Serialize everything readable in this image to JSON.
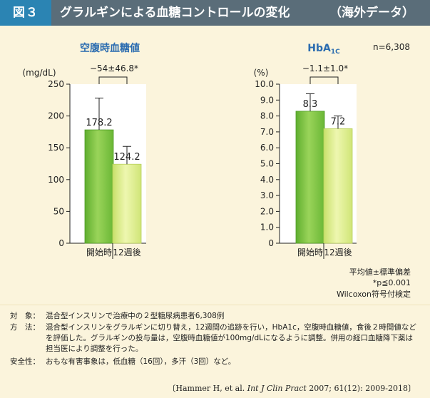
{
  "header": {
    "figure_label": "図３",
    "title": "グラルギンによる血糖コントロールの変化",
    "note": "（海外データ）"
  },
  "colors": {
    "header_bg": "#5a6d79",
    "label_bg": "#2b84b3",
    "panel_bg": "#fbf4dc",
    "title_blue": "#2b6cb0",
    "bar_dark_green": "#7cc243",
    "bar_light_green": "#d9ec8a"
  },
  "sample_size": "n=6,308",
  "chart_data": [
    {
      "type": "bar",
      "title": "空腹時血糖値",
      "ylabel": "(mg/dL)",
      "ylim": [
        0,
        250
      ],
      "yticks": [
        "0",
        "50",
        "100",
        "150",
        "200",
        "250"
      ],
      "categories": [
        "開始時",
        "12週後"
      ],
      "values": [
        178.2,
        124.2
      ],
      "value_labels": [
        "178.2",
        "124.2"
      ],
      "error_plus": [
        50,
        28
      ],
      "difference_label": "−54±46.8*"
    },
    {
      "type": "bar",
      "title": "HbA",
      "title_sub": "1C",
      "ylabel": "(%)",
      "ylim": [
        0,
        10
      ],
      "yticks": [
        "0",
        "1.0",
        "2.0",
        "3.0",
        "4.0",
        "5.0",
        "6.0",
        "7.0",
        "8.0",
        "9.0",
        "10.0"
      ],
      "categories": [
        "開始時",
        "12週後"
      ],
      "values": [
        8.3,
        7.2
      ],
      "value_labels": [
        "8.3",
        "7.2"
      ],
      "error_plus": [
        1.1,
        0.8
      ],
      "difference_label": "−1.1±1.0*"
    }
  ],
  "legend_notes": {
    "line1": "平均値±標準偏差",
    "line2": "*p≦0.001",
    "line3": "Wilcoxon符号付検定"
  },
  "notes": [
    {
      "key": "対　象：",
      "value": "混合型インスリンで治療中の２型糖尿病患者6,308例"
    },
    {
      "key": "方　法：",
      "value": "混合型インスリンをグラルギンに切り替え，12週間の追跡を行い，HbA1c，空腹時血糖値，食後２時間値などを評価した。グラルギンの投与量は，空腹時血糖値が100mg/dLになるように調整。併用の経口血糖降下薬は担当医により調整を行った。"
    },
    {
      "key": "安全性：",
      "value": "おもな有害事象は，低血糖（16回），多汗（3回）など。"
    }
  ],
  "citation": {
    "pre": "〔Hammer H, et al. ",
    "journal": "Int J Clin Pract",
    "post": " 2007; 61(12): 2009-2018〕"
  }
}
